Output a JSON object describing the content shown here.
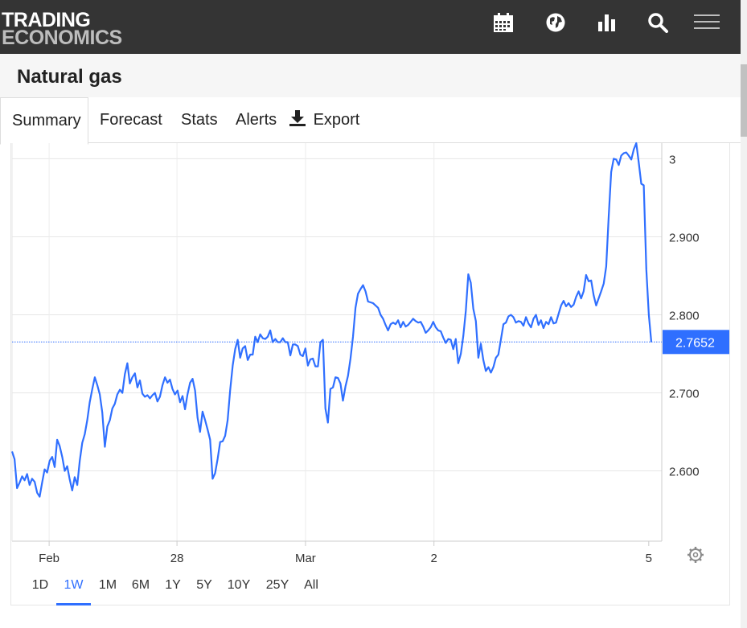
{
  "logo": {
    "line1": "TRADING",
    "line2": "ECONOMICS"
  },
  "nav_icons": [
    "calendar-icon",
    "globe-icon",
    "bar-chart-icon",
    "search-icon",
    "menu-icon"
  ],
  "page_title": "Natural gas",
  "tabs": [
    {
      "label": "Summary",
      "active": true
    },
    {
      "label": "Forecast"
    },
    {
      "label": "Stats"
    },
    {
      "label": "Alerts"
    },
    {
      "label": "Export",
      "icon": "download-icon"
    }
  ],
  "ranges": [
    "1D",
    "1W",
    "1M",
    "6M",
    "1Y",
    "5Y",
    "10Y",
    "25Y",
    "All"
  ],
  "active_range": "1W",
  "colors": {
    "line": "#2f6fff",
    "topbar": "#343434",
    "price_badge": "#2f6fff"
  },
  "chart_data": {
    "type": "line",
    "x_tick_labels": [
      "Feb",
      "28",
      "Mar",
      "2",
      "5"
    ],
    "y_tick_labels": [
      "3",
      "2.900",
      "2.800",
      "2.700",
      "2.600"
    ],
    "y_ticks": [
      3.0,
      2.9,
      2.8,
      2.7,
      2.6
    ],
    "ylim": [
      2.51,
      3.02
    ],
    "last_price": 2.7652,
    "last_price_label": "2.7652",
    "grid": true,
    "series": [
      {
        "values": [
          2.625,
          2.615,
          2.578,
          2.585,
          2.593,
          2.588,
          2.596,
          2.582,
          2.59,
          2.586,
          2.572,
          2.567,
          2.585,
          2.602,
          2.598,
          2.613,
          2.618,
          2.605,
          2.64,
          2.632,
          2.618,
          2.6,
          2.606,
          2.589,
          2.575,
          2.592,
          2.582,
          2.613,
          2.636,
          2.647,
          2.665,
          2.688,
          2.705,
          2.72,
          2.71,
          2.698,
          2.675,
          2.631,
          2.657,
          2.665,
          2.68,
          2.686,
          2.698,
          2.704,
          2.7,
          2.724,
          2.738,
          2.712,
          2.72,
          2.725,
          2.707,
          2.716,
          2.699,
          2.695,
          2.697,
          2.693,
          2.697,
          2.7,
          2.689,
          2.695,
          2.71,
          2.72,
          2.713,
          2.717,
          2.705,
          2.698,
          2.703,
          2.688,
          2.696,
          2.679,
          2.698,
          2.713,
          2.718,
          2.703,
          2.668,
          2.65,
          2.676,
          2.665,
          2.653,
          2.64,
          2.59,
          2.597,
          2.615,
          2.637,
          2.638,
          2.645,
          2.665,
          2.703,
          2.735,
          2.756,
          2.768,
          2.745,
          2.757,
          2.76,
          2.742,
          2.749,
          2.749,
          2.772,
          2.765,
          2.775,
          2.77,
          2.769,
          2.772,
          2.78,
          2.765,
          2.769,
          2.765,
          2.765,
          2.77,
          2.765,
          2.765,
          2.748,
          2.762,
          2.762,
          2.76,
          2.749,
          2.747,
          2.757,
          2.735,
          2.743,
          2.744,
          2.734,
          2.734,
          2.765,
          2.768,
          2.68,
          2.662,
          2.705,
          2.707,
          2.72,
          2.719,
          2.712,
          2.69,
          2.708,
          2.722,
          2.744,
          2.772,
          2.809,
          2.827,
          2.833,
          2.838,
          2.83,
          2.817,
          2.816,
          2.815,
          2.812,
          2.809,
          2.8,
          2.795,
          2.787,
          2.78,
          2.788,
          2.79,
          2.788,
          2.793,
          2.784,
          2.791,
          2.785,
          2.787,
          2.791,
          2.795,
          2.792,
          2.79,
          2.791,
          2.785,
          2.777,
          2.78,
          2.784,
          2.791,
          2.784,
          2.78,
          2.779,
          2.771,
          2.764,
          2.769,
          2.768,
          2.756,
          2.769,
          2.738,
          2.75,
          2.773,
          2.805,
          2.852,
          2.841,
          2.808,
          2.792,
          2.745,
          2.763,
          2.742,
          2.728,
          2.733,
          2.726,
          2.733,
          2.745,
          2.749,
          2.768,
          2.788,
          2.79,
          2.798,
          2.8,
          2.797,
          2.79,
          2.792,
          2.791,
          2.786,
          2.797,
          2.789,
          2.784,
          2.795,
          2.8,
          2.787,
          2.793,
          2.783,
          2.791,
          2.788,
          2.797,
          2.789,
          2.79,
          2.801,
          2.812,
          2.818,
          2.811,
          2.815,
          2.81,
          2.813,
          2.823,
          2.83,
          2.821,
          2.83,
          2.851,
          2.843,
          2.844,
          2.825,
          2.812,
          2.821,
          2.83,
          2.84,
          2.862,
          2.926,
          2.983,
          3.0,
          2.999,
          2.992,
          3.004,
          3.007,
          3.008,
          3.004,
          2.999,
          3.012,
          3.02,
          2.995,
          2.968,
          2.966,
          2.858,
          2.8,
          2.765
        ]
      }
    ]
  }
}
